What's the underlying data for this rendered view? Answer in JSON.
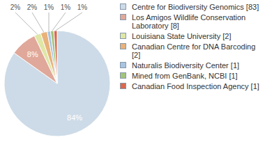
{
  "chart_data": {
    "type": "pie",
    "categories": [
      "Centre for Biodiversity Genomics [83]",
      "Los Amigos Wildlife Conservation Laboratory [8]",
      "Louisiana State University [2]",
      "Canadian Centre for DNA Barcoding [2]",
      "Naturalis Biodiversity Center [1]",
      "Mined from GenBank, NCBI [1]",
      "Canadian Food Inspection Agency [1]"
    ],
    "values": [
      84,
      8,
      2,
      2,
      1,
      1,
      1
    ],
    "value_labels": [
      "84%",
      "8%",
      "2%",
      "2%",
      "1%",
      "1%",
      "1%"
    ],
    "colors": [
      "#cddbe8",
      "#e0a89a",
      "#dfe6a6",
      "#e8b27a",
      "#a8c4e0",
      "#a3c47a",
      "#d9694f"
    ],
    "data_labels": true,
    "legend": "right"
  }
}
